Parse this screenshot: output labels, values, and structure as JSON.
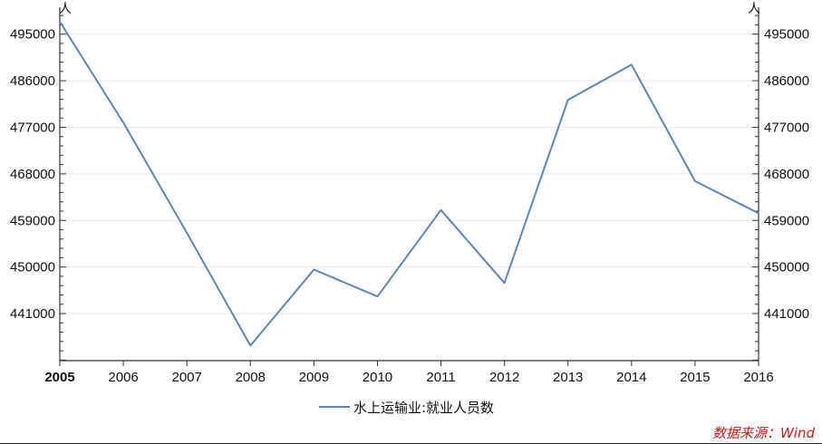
{
  "chart_data": {
    "type": "line",
    "x": [
      "2005",
      "2006",
      "2007",
      "2008",
      "2009",
      "2010",
      "2011",
      "2012",
      "2013",
      "2014",
      "2015",
      "2016"
    ],
    "series": [
      {
        "name": "水上运输业:就业人员数",
        "values": [
          497400,
          477900,
          456600,
          434800,
          449500,
          444300,
          461000,
          446900,
          482300,
          489100,
          466600,
          460400
        ],
        "color": "#5b86b6"
      }
    ],
    "y_ticks": [
      "495000",
      "486000",
      "477000",
      "468000",
      "459000",
      "450000",
      "441000"
    ],
    "ylim": [
      431900,
      498800
    ],
    "unit_left": "人",
    "unit_right": "人",
    "legend_position": "bottom-center",
    "grid": true
  },
  "source": "数据来源：Wind"
}
